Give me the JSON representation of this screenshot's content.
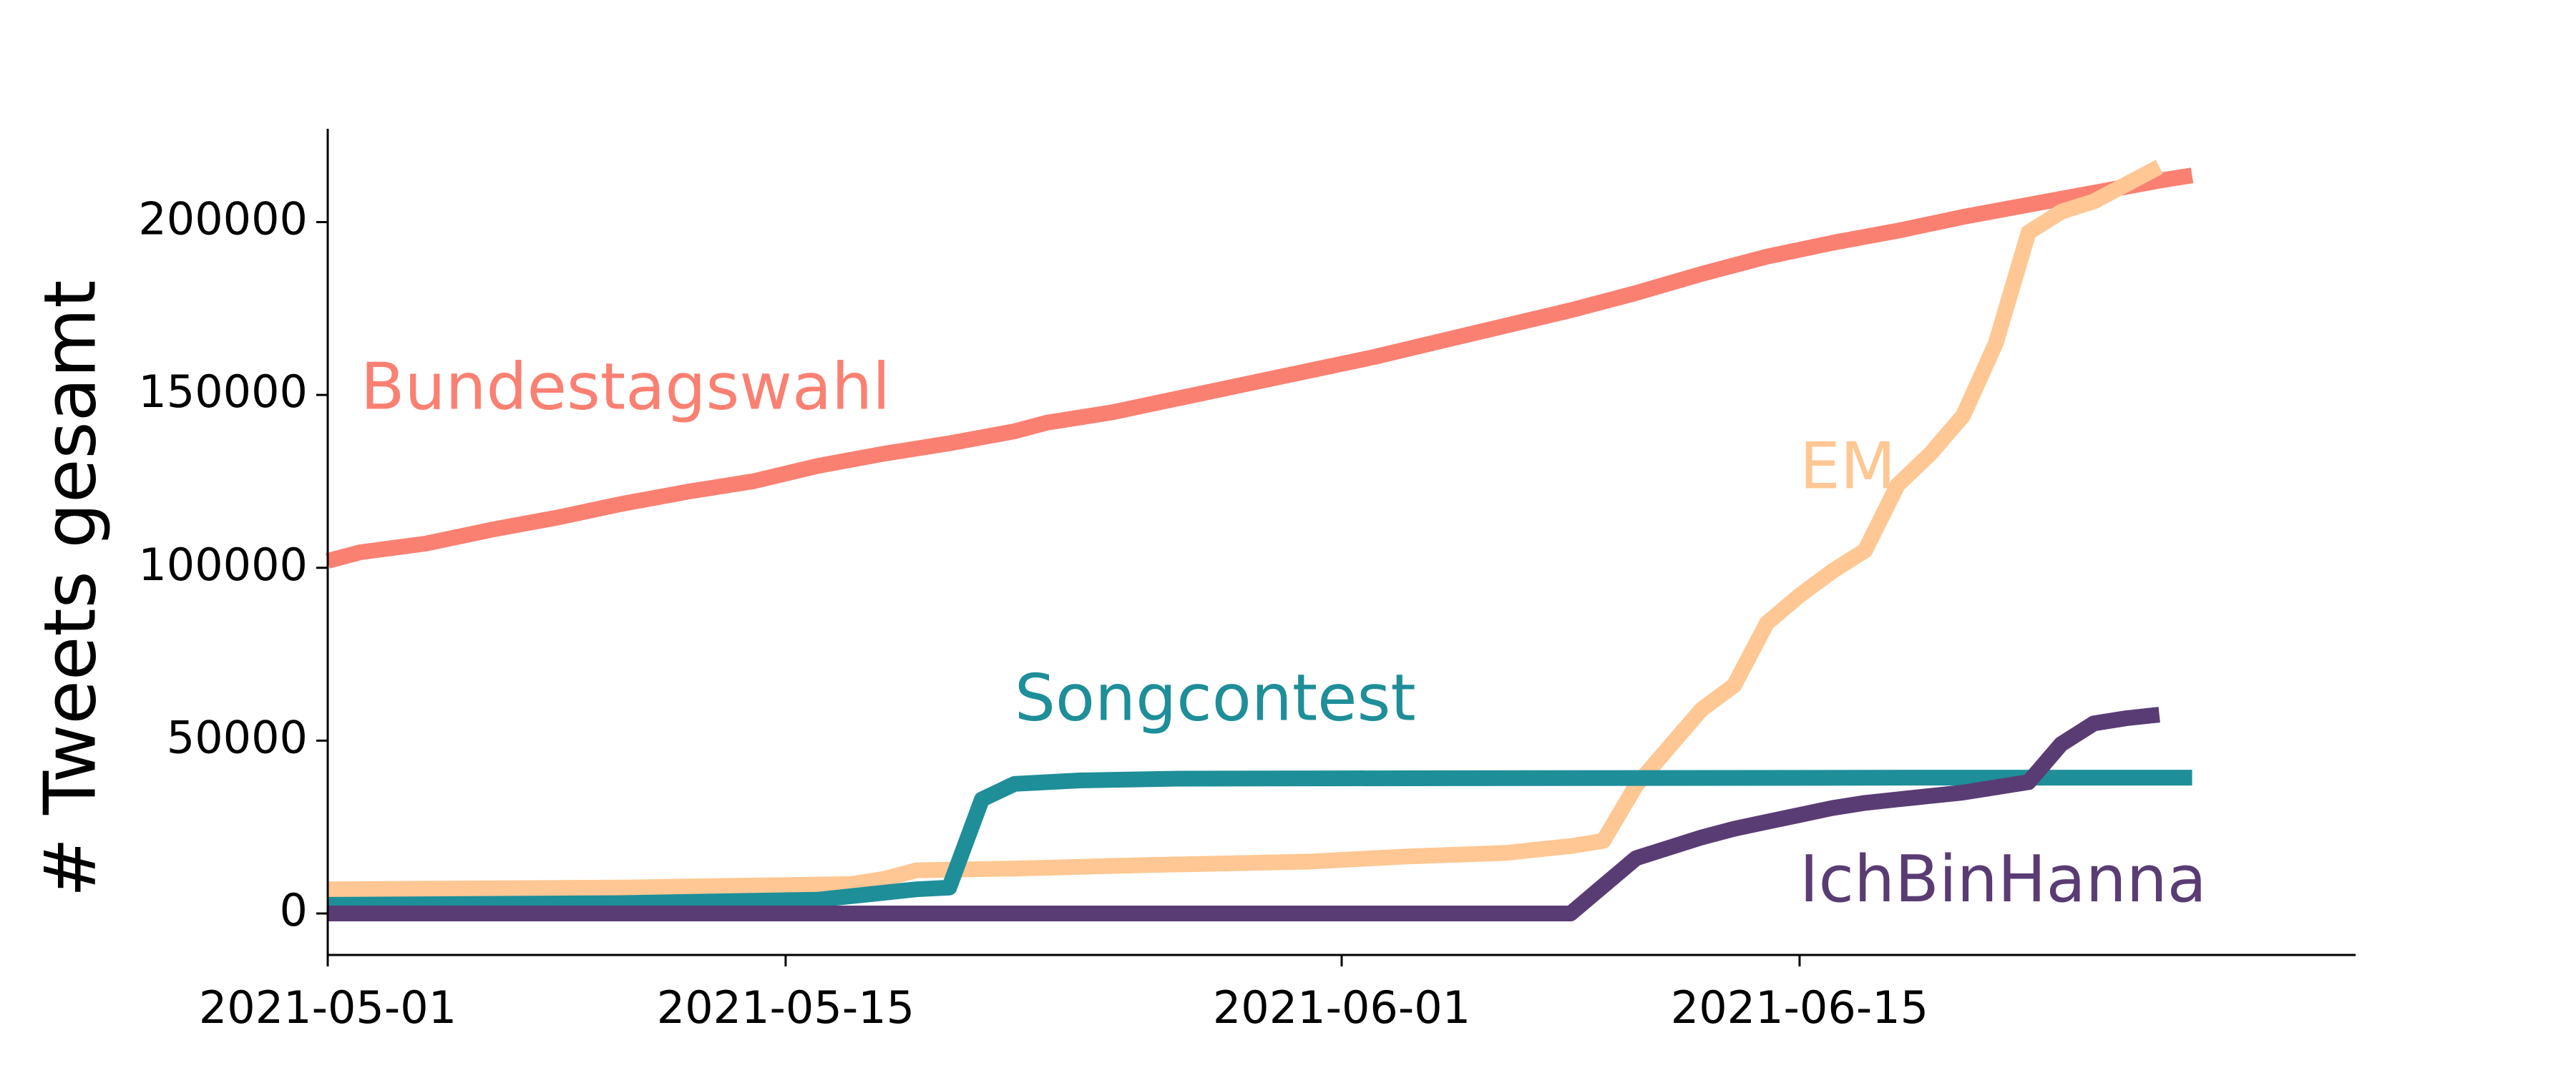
{
  "chart_data": {
    "type": "line",
    "ylabel": "# Tweets gesamt",
    "xlabel": "",
    "title": "",
    "legend": "inline labels",
    "grid": false,
    "xlim": [
      "2021-05-01",
      "2021-07-02"
    ],
    "ylim": [
      -12000,
      227000
    ],
    "xticks": [
      "2021-05-01",
      "2021-05-15",
      "2021-06-01",
      "2021-06-15"
    ],
    "yticks": [
      0,
      50000,
      100000,
      150000,
      200000
    ],
    "ytick_labels": [
      "0",
      "50000",
      "100000",
      "150000",
      "200000"
    ],
    "series": [
      {
        "name": "Bundestagswahl",
        "color": "#fa8072",
        "points": [
          [
            "2021-05-01",
            102000
          ],
          [
            "2021-05-02",
            104500
          ],
          [
            "2021-05-04",
            107000
          ],
          [
            "2021-05-06",
            111000
          ],
          [
            "2021-05-08",
            114500
          ],
          [
            "2021-05-10",
            118500
          ],
          [
            "2021-05-12",
            122000
          ],
          [
            "2021-05-14",
            125000
          ],
          [
            "2021-05-16",
            129500
          ],
          [
            "2021-05-18",
            133000
          ],
          [
            "2021-05-20",
            136000
          ],
          [
            "2021-05-22",
            139500
          ],
          [
            "2021-05-23",
            142000
          ],
          [
            "2021-05-25",
            145000
          ],
          [
            "2021-05-27",
            149000
          ],
          [
            "2021-05-29",
            153000
          ],
          [
            "2021-05-31",
            157000
          ],
          [
            "2021-06-02",
            161000
          ],
          [
            "2021-06-04",
            165500
          ],
          [
            "2021-06-06",
            170000
          ],
          [
            "2021-06-08",
            174500
          ],
          [
            "2021-06-10",
            179500
          ],
          [
            "2021-06-12",
            185000
          ],
          [
            "2021-06-14",
            190000
          ],
          [
            "2021-06-16",
            194000
          ],
          [
            "2021-06-18",
            197500
          ],
          [
            "2021-06-20",
            201500
          ],
          [
            "2021-06-22",
            205000
          ],
          [
            "2021-06-24",
            208500
          ],
          [
            "2021-06-26",
            212000
          ],
          [
            "2021-06-27",
            213500
          ]
        ]
      },
      {
        "name": "EM",
        "color": "#ffc793",
        "points": [
          [
            "2021-05-01",
            7000
          ],
          [
            "2021-05-10",
            7500
          ],
          [
            "2021-05-17",
            8500
          ],
          [
            "2021-05-18",
            10000
          ],
          [
            "2021-05-19",
            12500
          ],
          [
            "2021-05-22",
            13000
          ],
          [
            "2021-05-26",
            14000
          ],
          [
            "2021-05-31",
            15000
          ],
          [
            "2021-06-03",
            16500
          ],
          [
            "2021-06-06",
            17500
          ],
          [
            "2021-06-08",
            19500
          ],
          [
            "2021-06-09",
            21000
          ],
          [
            "2021-06-10",
            37000
          ],
          [
            "2021-06-11",
            48000
          ],
          [
            "2021-06-12",
            59000
          ],
          [
            "2021-06-13",
            66000
          ],
          [
            "2021-06-14",
            84000
          ],
          [
            "2021-06-15",
            92000
          ],
          [
            "2021-06-16",
            99000
          ],
          [
            "2021-06-17",
            105000
          ],
          [
            "2021-06-18",
            124000
          ],
          [
            "2021-06-19",
            133000
          ],
          [
            "2021-06-20",
            144000
          ],
          [
            "2021-06-21",
            165000
          ],
          [
            "2021-06-22",
            197000
          ],
          [
            "2021-06-23",
            203000
          ],
          [
            "2021-06-24",
            206000
          ],
          [
            "2021-06-25",
            211000
          ],
          [
            "2021-06-26",
            216000
          ]
        ]
      },
      {
        "name": "Songcontest",
        "color": "#1e8e99",
        "points": [
          [
            "2021-05-01",
            2500
          ],
          [
            "2021-05-10",
            3000
          ],
          [
            "2021-05-16",
            4000
          ],
          [
            "2021-05-17",
            5000
          ],
          [
            "2021-05-18",
            6000
          ],
          [
            "2021-05-19",
            7000
          ],
          [
            "2021-05-20",
            7500
          ],
          [
            "2021-05-21",
            33000
          ],
          [
            "2021-05-22",
            37500
          ],
          [
            "2021-05-24",
            38500
          ],
          [
            "2021-05-27",
            39000
          ],
          [
            "2021-06-01",
            39100
          ],
          [
            "2021-06-10",
            39200
          ],
          [
            "2021-06-20",
            39300
          ],
          [
            "2021-06-27",
            39300
          ]
        ]
      },
      {
        "name": "IchBinHanna",
        "color": "#5a3c74",
        "points": [
          [
            "2021-05-01",
            0
          ],
          [
            "2021-06-08",
            0
          ],
          [
            "2021-06-09",
            8000
          ],
          [
            "2021-06-10",
            16000
          ],
          [
            "2021-06-11",
            19000
          ],
          [
            "2021-06-12",
            22000
          ],
          [
            "2021-06-13",
            24500
          ],
          [
            "2021-06-14",
            26500
          ],
          [
            "2021-06-15",
            28500
          ],
          [
            "2021-06-16",
            30500
          ],
          [
            "2021-06-17",
            32000
          ],
          [
            "2021-06-18",
            33000
          ],
          [
            "2021-06-19",
            34000
          ],
          [
            "2021-06-20",
            35000
          ],
          [
            "2021-06-21",
            36500
          ],
          [
            "2021-06-22",
            38000
          ],
          [
            "2021-06-23",
            49000
          ],
          [
            "2021-06-24",
            55000
          ],
          [
            "2021-06-25",
            56500
          ],
          [
            "2021-06-26",
            57500
          ]
        ]
      }
    ],
    "annotations": [
      {
        "text": "Bundestagswahl",
        "color": "#fa8072",
        "x": "2021-05-02",
        "y": 146000
      },
      {
        "text": "EM",
        "color": "#ffc793",
        "x": "2021-06-15",
        "y": 123000
      },
      {
        "text": "Songcontest",
        "color": "#1e8e99",
        "x": "2021-05-22",
        "y": 56000
      },
      {
        "text": "IchBinHanna",
        "color": "#5a3c74",
        "x": "2021-06-15",
        "y": 3500
      }
    ]
  }
}
